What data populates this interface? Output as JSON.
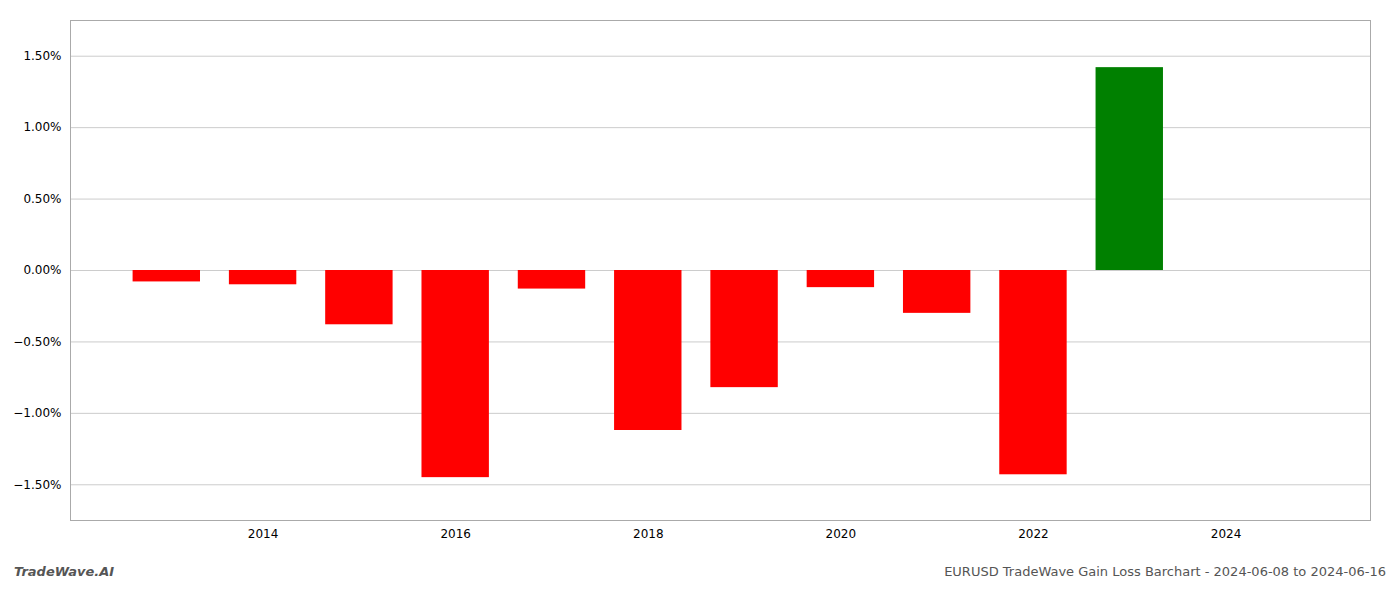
{
  "chart_data": {
    "type": "bar",
    "x": [
      2013,
      2014,
      2015,
      2016,
      2017,
      2018,
      2019,
      2020,
      2021,
      2022,
      2023
    ],
    "values": [
      -0.08,
      -0.1,
      -0.38,
      -1.45,
      -0.13,
      -1.12,
      -0.82,
      -0.12,
      -0.3,
      -1.43,
      1.42
    ],
    "colors": [
      "red",
      "red",
      "red",
      "red",
      "red",
      "red",
      "red",
      "red",
      "red",
      "red",
      "green"
    ],
    "xlim": [
      2012.0,
      2025.5
    ],
    "xticks": [
      2014,
      2016,
      2018,
      2020,
      2022,
      2024
    ],
    "ylim": [
      -1.75,
      1.75
    ],
    "yticks": [
      {
        "value": -1.5,
        "label": "−1.50%"
      },
      {
        "value": -1.0,
        "label": "−1.00%"
      },
      {
        "value": -0.5,
        "label": "−0.50%"
      },
      {
        "value": 0.0,
        "label": "0.00%"
      },
      {
        "value": 0.5,
        "label": "0.50%"
      },
      {
        "value": 1.0,
        "label": "1.00%"
      },
      {
        "value": 1.5,
        "label": "1.50%"
      }
    ],
    "grid": true,
    "annotations": [
      "TradeWave.AI",
      "EURUSD TradeWave Gain Loss Barchart - 2024-06-08 to 2024-06-16"
    ]
  }
}
